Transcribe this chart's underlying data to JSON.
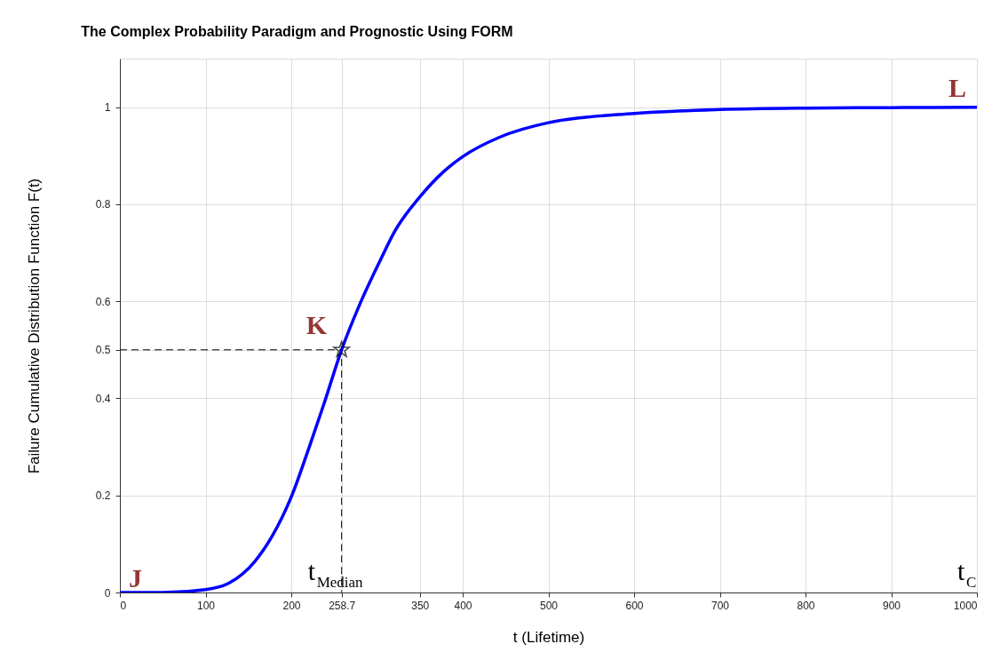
{
  "chart_data": {
    "type": "line",
    "title": "The Complex Probability Paradigm and Prognostic Using FORM",
    "xlabel": "t (Lifetime)",
    "ylabel": "Failure Cumulative Distribution Function F(t)",
    "xlim": [
      0,
      1000
    ],
    "ylim": [
      0,
      1.1
    ],
    "xticks": [
      0,
      100,
      200,
      258.7,
      350,
      400,
      500,
      600,
      700,
      800,
      900,
      1000
    ],
    "yticks": [
      0,
      0.2,
      0.4,
      0.5,
      0.6,
      0.8,
      1
    ],
    "grid": true,
    "series": [
      {
        "color": "#0000ff",
        "line_style": "solid",
        "marker": "none",
        "x": [
          0,
          50,
          100,
          128,
          157,
          177,
          200,
          222,
          238,
          258.7,
          279,
          304,
          320,
          350,
          377,
          400,
          443,
          500,
          600,
          700,
          800,
          900,
          1000
        ],
        "values": [
          0,
          0,
          0.006,
          0.02,
          0.063,
          0.114,
          0.197,
          0.305,
          0.388,
          0.5,
          0.59,
          0.685,
          0.742,
          0.815,
          0.866,
          0.898,
          0.938,
          0.968,
          0.987,
          0.995,
          0.998,
          0.999,
          1.0
        ]
      },
      {
        "type": "line",
        "color": "#000000",
        "line_style": "dashed",
        "marker": "none",
        "x": [
          0,
          258.7,
          258.7
        ],
        "values": [
          0.5,
          0.5,
          0
        ]
      },
      {
        "type": "scatter",
        "color": "#000000",
        "marker": "star",
        "x": [
          258.7
        ],
        "values": [
          0.5
        ]
      }
    ],
    "annotations": [
      {
        "text": "J",
        "x": 0,
        "y": 0
      },
      {
        "text": "K",
        "x": 258.7,
        "y": 0.5
      },
      {
        "text": "L",
        "x": 1000,
        "y": 1
      },
      {
        "text": "t$_{Median}$",
        "x": 258.7,
        "y": 0
      },
      "t$_{C}$"
    ]
  }
}
